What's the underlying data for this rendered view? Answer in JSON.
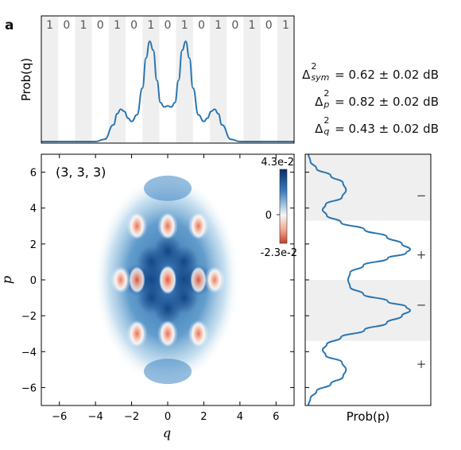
{
  "figure": {
    "panel_label": "a"
  },
  "metrics": [
    {
      "symbol": "Δ",
      "sup": "2",
      "sub": "sym",
      "text": " = 0.62 ± 0.02 dB"
    },
    {
      "symbol": "Δ",
      "sup": "2",
      "sub": "p",
      "text": " = 0.82 ± 0.02 dB"
    },
    {
      "symbol": "Δ",
      "sup": "2",
      "sub": "q",
      "text": " = 0.43 ± 0.02 dB"
    }
  ],
  "chart_data": [
    {
      "id": "top",
      "type": "line",
      "ylabel": "Prob(q)",
      "xlim": [
        -7,
        7
      ],
      "bit_labels": [
        "1",
        "0",
        "1",
        "0",
        "1",
        "0",
        "1",
        "0",
        "1",
        "0",
        "1",
        "0",
        "1",
        "0",
        "1"
      ],
      "x": [
        -4,
        -3.5,
        -3,
        -2.8,
        -2.6,
        -2.4,
        -2.2,
        -2,
        -1.7,
        -1.4,
        -1.2,
        -1,
        -0.8,
        -0.6,
        -0.4,
        -0.2,
        0,
        0.2,
        0.4,
        0.6,
        0.8,
        1,
        1.2,
        1.4,
        1.7,
        2,
        2.2,
        2.4,
        2.6,
        2.8,
        3,
        3.5,
        4
      ],
      "y": [
        0,
        0.02,
        0.15,
        0.25,
        0.29,
        0.27,
        0.21,
        0.18,
        0.24,
        0.48,
        0.75,
        0.9,
        0.82,
        0.55,
        0.35,
        0.31,
        0.32,
        0.31,
        0.35,
        0.55,
        0.82,
        0.9,
        0.75,
        0.48,
        0.24,
        0.18,
        0.21,
        0.27,
        0.29,
        0.25,
        0.15,
        0.02,
        0
      ]
    },
    {
      "id": "wigner",
      "type": "heatmap",
      "annotation": "(3, 3, 3)",
      "xlabel": "q",
      "ylabel": "p",
      "xlim": [
        -7,
        7
      ],
      "ylim": [
        -7,
        7
      ],
      "xticks": [
        -6,
        -4,
        -2,
        0,
        2,
        4,
        6
      ],
      "yticks": [
        -6,
        -4,
        -2,
        0,
        2,
        4,
        6
      ],
      "colorbar": {
        "max_label": "4.3e-2",
        "zero_label": "0",
        "min_label": "-2.3e-2"
      }
    },
    {
      "id": "right",
      "type": "line",
      "xlabel": "Prob(p)",
      "ylim": [
        -7,
        7
      ],
      "sign_labels": [
        "−",
        "+",
        "−",
        "+"
      ],
      "p": [
        -7,
        -6.6,
        -6.2,
        -5.8,
        -5.4,
        -5,
        -4.6,
        -4.2,
        -3.9,
        -3.6,
        -3.2,
        -2.8,
        -2.4,
        -2,
        -1.7,
        -1.5,
        -1.2,
        -0.8,
        -0.4,
        0,
        0.4,
        0.8,
        1.2,
        1.5,
        1.7,
        2,
        2.4,
        2.8,
        3.2,
        3.6,
        3.9,
        4.2,
        4.6,
        5,
        5.4,
        5.8,
        6.2,
        6.6,
        7
      ],
      "prob": [
        0,
        0.02,
        0.08,
        0.22,
        0.34,
        0.37,
        0.33,
        0.17,
        0.14,
        0.18,
        0.32,
        0.55,
        0.77,
        0.92,
        1.0,
        0.96,
        0.78,
        0.54,
        0.41,
        0.39,
        0.41,
        0.54,
        0.78,
        0.96,
        1.0,
        0.92,
        0.77,
        0.55,
        0.32,
        0.18,
        0.14,
        0.17,
        0.33,
        0.37,
        0.34,
        0.22,
        0.08,
        0.02,
        0
      ]
    }
  ]
}
